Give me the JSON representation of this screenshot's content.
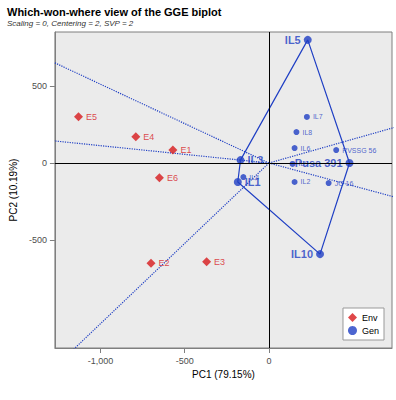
{
  "chart_data": {
    "type": "scatter",
    "title": "Which-won-where view of the GGE biplot",
    "subtitle": "Scaling = 0, Centering = 2, SVP = 2",
    "x_label": "PC1 (79.15%)",
    "y_label": "PC2 (10.19%)",
    "xlim": [
      -1270,
      730
    ],
    "ylim": [
      -1200,
      850
    ],
    "xticks": [
      -1000,
      -500,
      0
    ],
    "yticks": [
      -500,
      0,
      500
    ],
    "grid": false,
    "legend": "lower right",
    "series": [
      {
        "name": "Env",
        "color": "#d7191c",
        "marker": "diamond",
        "labels": [
          "E1",
          "E2",
          "E3",
          "E4",
          "E5",
          "E6"
        ],
        "x": [
          -570,
          -700,
          -370,
          -790,
          -1130,
          -650
        ],
        "y": [
          85,
          -650,
          -640,
          170,
          300,
          -95
        ]
      },
      {
        "name": "Gen",
        "color": "#1f3fc4",
        "marker": "circle",
        "labels": [
          "IL5",
          "Pusa 391",
          "IL10",
          "IL1",
          "IL3",
          "IL7",
          "IL8",
          "IL6",
          "IL4",
          "IL9",
          "IL2",
          "JG 16",
          "RVSSG 56"
        ],
        "x": [
          230,
          478,
          303,
          -185,
          -169,
          225,
          163,
          152,
          -152,
          140,
          152,
          354,
          399
        ],
        "y": [
          799,
          0,
          -591,
          -123,
          19,
          299,
          201,
          97,
          -91,
          -6,
          -123,
          -130,
          84
        ]
      }
    ],
    "polygon": [
      "IL5",
      "Pusa 391",
      "IL10",
      "IL1",
      "IL3"
    ]
  }
}
